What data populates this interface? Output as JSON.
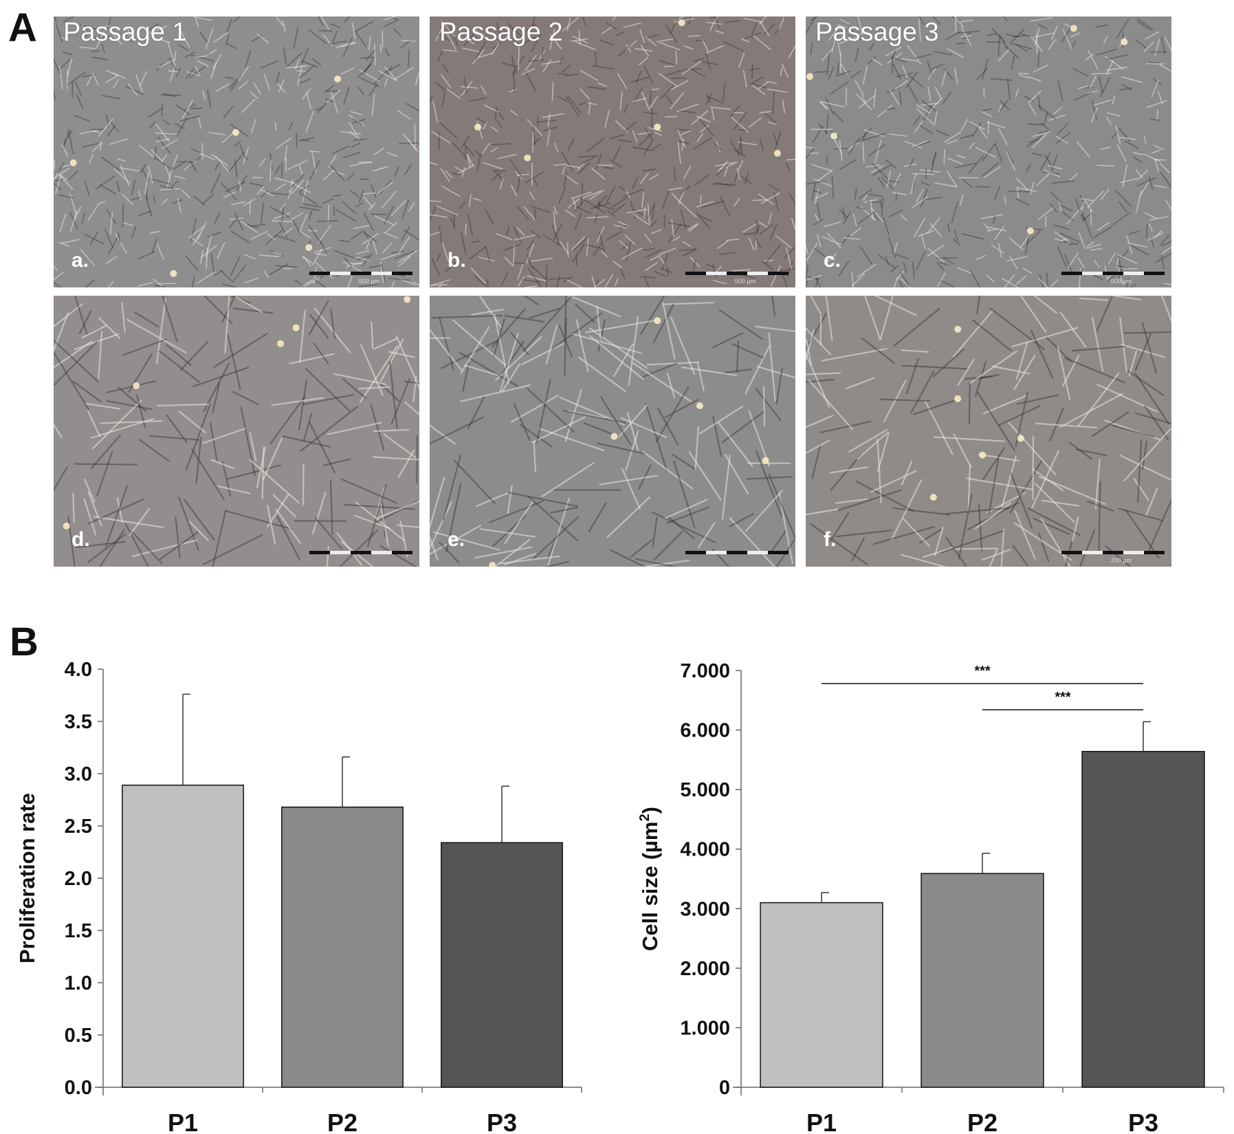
{
  "panel_labels": {
    "a": "A",
    "b": "B"
  },
  "micrographs": [
    {
      "id": "a",
      "letter": "a.",
      "title": "Passage 1",
      "scale": "500 µm",
      "mag": "low",
      "tint": "#8f8d8e"
    },
    {
      "id": "b",
      "letter": "b.",
      "title": "Passage 2",
      "scale": "500 µm",
      "mag": "low",
      "tint": "#847a77"
    },
    {
      "id": "c",
      "letter": "c.",
      "title": "Passage 3",
      "scale": "500 µm",
      "mag": "low",
      "tint": "#8b8b8b"
    },
    {
      "id": "d",
      "letter": "d.",
      "title": "",
      "scale": "",
      "mag": "high",
      "tint": "#928e8d"
    },
    {
      "id": "e",
      "letter": "e.",
      "title": "",
      "scale": "",
      "mag": "high",
      "tint": "#8d8c8c"
    },
    {
      "id": "f",
      "letter": "f.",
      "title": "",
      "scale": "200 µm",
      "mag": "high",
      "tint": "#8e8b89"
    }
  ],
  "chart_data": [
    {
      "type": "bar",
      "categories": [
        "P1",
        "P2",
        "P3"
      ],
      "values": [
        2.89,
        2.68,
        2.34
      ],
      "errors": [
        0.87,
        0.48,
        0.54
      ],
      "ylabel": "Proliferation rate",
      "xlabel": "",
      "ylim": [
        0,
        4.0
      ],
      "yticks": [
        "0.0",
        "0.5",
        "1.0",
        "1.5",
        "2.0",
        "2.5",
        "3.0",
        "3.5",
        "4.0"
      ],
      "bar_colors": [
        "#c0c0c0",
        "#8a8a8a",
        "#555555"
      ],
      "significance": []
    },
    {
      "type": "bar",
      "categories": [
        "P1",
        "P2",
        "P3"
      ],
      "values": [
        3100,
        3590,
        5640
      ],
      "errors": [
        170,
        340,
        500
      ],
      "ylabel_main": "Cell size (µm",
      "ylabel_sup": "2",
      "ylabel_close": ")",
      "xlabel": "",
      "ylim": [
        0,
        7000
      ],
      "yticks": [
        "0",
        "1.000",
        "2.000",
        "3.000",
        "4.000",
        "5.000",
        "6.000",
        "7.000"
      ],
      "bar_colors": [
        "#c0c0c0",
        "#8a8a8a",
        "#555555"
      ],
      "significance": [
        {
          "from": 0,
          "to": 2,
          "label": "***",
          "y": 6780
        },
        {
          "from": 1,
          "to": 2,
          "label": "***",
          "y": 6340
        }
      ]
    }
  ]
}
